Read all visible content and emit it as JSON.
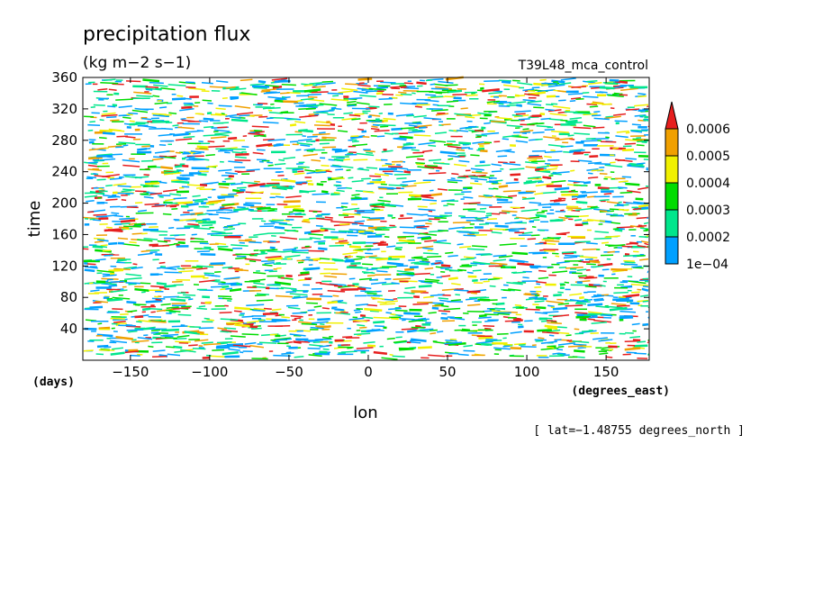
{
  "chart_data": {
    "type": "heatmap",
    "title": "precipitation flux",
    "units": "(kg m−2 s−1)",
    "run_name": "T39L48_mca_control",
    "xlabel": "lon",
    "x_units": "(degrees_east)",
    "ylabel": "time",
    "y_units": "(days)",
    "xlim": [
      -180,
      177.1875
    ],
    "ylim": [
      0,
      360
    ],
    "x_ticks": [
      -150,
      -100,
      -50,
      0,
      50,
      100,
      150
    ],
    "y_ticks": [
      40,
      80,
      120,
      160,
      200,
      240,
      280,
      320,
      360
    ],
    "x_tick_labels": [
      "−150",
      "−100",
      "−50",
      "0",
      "50",
      "100",
      "150"
    ],
    "y_tick_labels": [
      "40",
      "80",
      "120",
      "160",
      "200",
      "240",
      "280",
      "320",
      "360"
    ],
    "colorbar": {
      "levels": [
        0.0001,
        0.0002,
        0.0003,
        0.0004,
        0.0005,
        0.0006
      ],
      "level_labels": [
        "1e−04",
        "0.0002",
        "0.0003",
        "0.0004",
        "0.0005",
        "0.0006"
      ],
      "colors": [
        "#00a0ff",
        "#00e68c",
        "#00dc00",
        "#f0f000",
        "#f0a000",
        "#e61e1e"
      ],
      "extend": "max"
    },
    "annotation": "[ lat=−1.48755 degrees_north ]",
    "pattern": "dense scattered short zonal streaks of precipitation across all longitudes and times"
  }
}
